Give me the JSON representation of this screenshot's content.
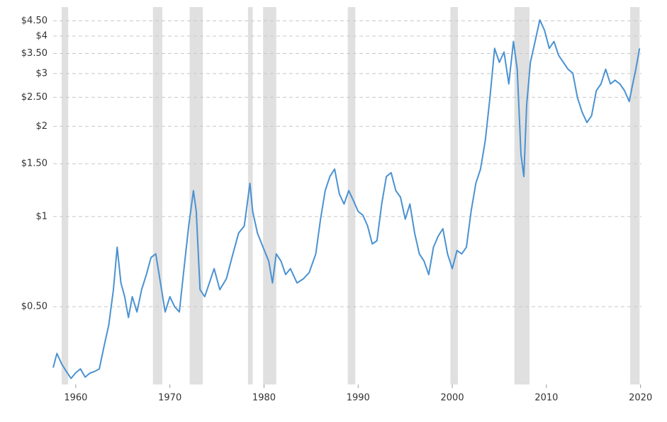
{
  "chart_data": {
    "type": "line",
    "log_y": true,
    "grid": true,
    "xlim": [
      1957.6,
      2020.1
    ],
    "xticks": [
      1960,
      1970,
      1980,
      1990,
      2000,
      2010,
      2020
    ],
    "ylim": [
      0.275,
      5
    ],
    "yticks": [
      {
        "value": 0.5,
        "label": "$0.50"
      },
      {
        "value": 1,
        "label": "$1"
      },
      {
        "value": 1.5,
        "label": "$1.50"
      },
      {
        "value": 2,
        "label": "$2"
      },
      {
        "value": 2.5,
        "label": "$2.50"
      },
      {
        "value": 3,
        "label": "$3"
      },
      {
        "value": 3.5,
        "label": "$3.50"
      },
      {
        "value": 4,
        "label": "$4"
      },
      {
        "value": 4.5,
        "label": "$4.50"
      }
    ],
    "shaded_ranges": [
      [
        1958.5,
        1959.2
      ],
      [
        1968.2,
        1969.2
      ],
      [
        1972.1,
        1973.5
      ],
      [
        1978.3,
        1978.8
      ],
      [
        1979.9,
        1981.3
      ],
      [
        1988.9,
        1989.7
      ],
      [
        1999.8,
        2000.6
      ],
      [
        2006.6,
        2008.2
      ],
      [
        2018.9,
        2019.9
      ]
    ],
    "shade_color": "#e0e0e0",
    "series": [
      {
        "color": "#4a92d2",
        "x": [
          1957.6,
          1958,
          1958.5,
          1959,
          1959.5,
          1960,
          1960.5,
          1961,
          1961.5,
          1962,
          1962.5,
          1963,
          1963.5,
          1964,
          1964.4,
          1964.8,
          1965.2,
          1965.6,
          1966,
          1966.5,
          1967,
          1967.5,
          1968,
          1968.5,
          1969,
          1969.5,
          1970,
          1970.5,
          1971,
          1971.5,
          1972,
          1972.5,
          1972.8,
          1973.2,
          1973.7,
          1974.2,
          1974.7,
          1975.3,
          1976,
          1976.7,
          1977.3,
          1977.9,
          1978.5,
          1978.8,
          1979.3,
          1979.9,
          1980.5,
          1980.9,
          1981.3,
          1981.8,
          1982.3,
          1982.8,
          1983.5,
          1984.2,
          1984.8,
          1985.5,
          1986,
          1986.5,
          1987,
          1987.5,
          1988,
          1988.5,
          1989,
          1989.5,
          1990,
          1990.5,
          1991,
          1991.5,
          1992,
          1992.5,
          1993,
          1993.5,
          1994,
          1994.5,
          1995,
          1995.5,
          1996,
          1996.5,
          1997,
          1997.5,
          1998,
          1998.5,
          1999,
          1999.5,
          2000,
          2000.5,
          2001,
          2001.5,
          2002,
          2002.5,
          2003,
          2003.5,
          2004,
          2004.5,
          2005,
          2005.5,
          2006,
          2006.5,
          2006.9,
          2007.3,
          2007.6,
          2007.9,
          2008.3,
          2008.8,
          2009.3,
          2009.8,
          2010.3,
          2010.8,
          2011.3,
          2011.8,
          2012.3,
          2012.8,
          2013.3,
          2013.8,
          2014.3,
          2014.8,
          2015.3,
          2015.8,
          2016.3,
          2016.8,
          2017.3,
          2017.8,
          2018.3,
          2018.8,
          2019.1,
          2019.5,
          2019.9
        ],
        "values": [
          0.313,
          0.349,
          0.322,
          0.304,
          0.288,
          0.301,
          0.31,
          0.291,
          0.3,
          0.304,
          0.31,
          0.368,
          0.434,
          0.57,
          0.79,
          0.6,
          0.54,
          0.46,
          0.54,
          0.48,
          0.57,
          0.64,
          0.73,
          0.75,
          0.6,
          0.48,
          0.54,
          0.5,
          0.48,
          0.67,
          0.93,
          1.22,
          1.04,
          0.57,
          0.54,
          0.6,
          0.67,
          0.57,
          0.62,
          0.75,
          0.88,
          0.93,
          1.29,
          1.04,
          0.88,
          0.79,
          0.71,
          0.6,
          0.75,
          0.71,
          0.64,
          0.67,
          0.6,
          0.62,
          0.65,
          0.75,
          0.98,
          1.22,
          1.36,
          1.44,
          1.19,
          1.1,
          1.22,
          1.13,
          1.04,
          1.01,
          0.93,
          0.81,
          0.83,
          1.1,
          1.36,
          1.4,
          1.22,
          1.16,
          0.98,
          1.1,
          0.88,
          0.75,
          0.71,
          0.64,
          0.79,
          0.86,
          0.91,
          0.75,
          0.67,
          0.77,
          0.75,
          0.79,
          1.04,
          1.29,
          1.44,
          1.79,
          2.49,
          3.64,
          3.27,
          3.54,
          2.77,
          3.84,
          3.1,
          1.61,
          1.36,
          2.36,
          3.27,
          3.84,
          4.53,
          4.18,
          3.64,
          3.84,
          3.45,
          3.27,
          3.1,
          3.01,
          2.49,
          2.23,
          2.06,
          2.17,
          2.63,
          2.77,
          3.1,
          2.77,
          2.85,
          2.77,
          2.63,
          2.42,
          2.7,
          3.1,
          3.64
        ]
      }
    ]
  }
}
